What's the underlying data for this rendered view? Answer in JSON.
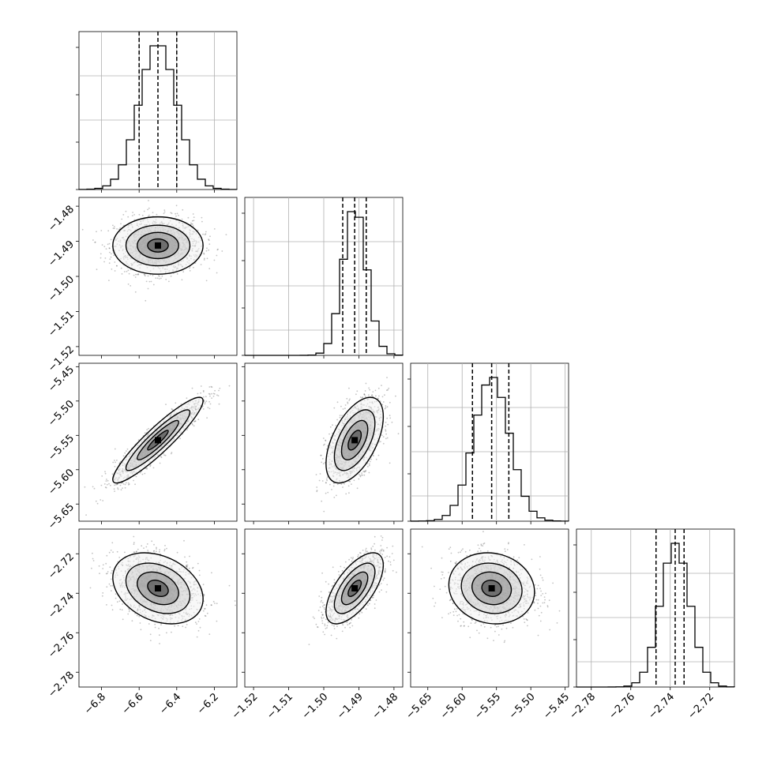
{
  "chart_data": {
    "type": "corner",
    "grid": true,
    "colors": {
      "hist": "#000000",
      "contour": "#000000",
      "points": "#555555",
      "grid": "#b0b0b0"
    },
    "parameters": [
      {
        "range": [
          -6.92,
          -6.08
        ],
        "ticks": [
          -6.8,
          -6.6,
          -6.4,
          -6.2
        ],
        "tick_labels": [
          "−6.8",
          "−6.6",
          "−6.4",
          "−6.2"
        ],
        "quantiles": [
          -6.6,
          -6.5,
          -6.4
        ],
        "mean": -6.5,
        "sd": 0.1
      },
      {
        "range": [
          -1.5225,
          -1.4775
        ],
        "ticks": [
          -1.52,
          -1.51,
          -1.5,
          -1.49,
          -1.48
        ],
        "tick_labels": [
          "−1.52",
          "−1.51",
          "−1.50",
          "−1.49",
          "−1.48"
        ],
        "quantiles": [
          -1.4946,
          -1.4912,
          -1.4879
        ],
        "mean": -1.4912,
        "sd": 0.0034
      },
      {
        "range": [
          -5.675,
          -5.445
        ],
        "ticks": [
          -5.65,
          -5.6,
          -5.55,
          -5.5,
          -5.45
        ],
        "tick_labels": [
          "−5.65",
          "−5.60",
          "−5.55",
          "−5.50",
          "−5.45"
        ],
        "quantiles": [
          -5.585,
          -5.557,
          -5.532
        ],
        "mean": -5.557,
        "sd": 0.026
      },
      {
        "range": [
          -2.7875,
          -2.7075
        ],
        "ticks": [
          -2.78,
          -2.76,
          -2.74,
          -2.72
        ],
        "tick_labels": [
          "−2.78",
          "−2.76",
          "−2.74",
          "−2.72"
        ],
        "quantiles": [
          -2.7472,
          -2.7375,
          -2.733
        ],
        "mean": -2.7375,
        "sd": 0.0075
      }
    ],
    "correlations": {
      "1-0": 0.0,
      "2-0": 0.92,
      "2-1": 0.55,
      "3-0": -0.3,
      "3-1": 0.65,
      "3-2": -0.1
    },
    "hist_bins": 20
  }
}
